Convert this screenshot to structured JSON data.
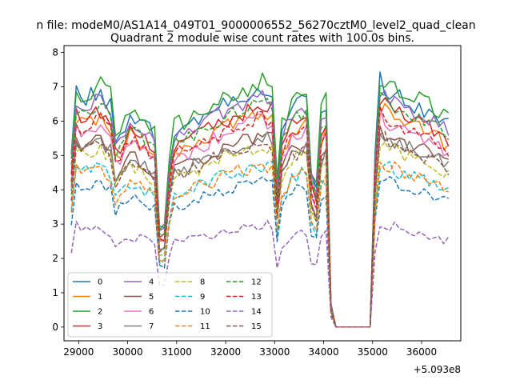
{
  "chart_data": {
    "type": "line",
    "suptitle": "n file: modeM0/AS1A14_049T01_9000006552_56270cztM0_level2_quad_clean",
    "title": "Quadrant 2 module wise count rates with 100.0s bins.",
    "xlabel": "",
    "ylabel": "",
    "x_offset_label": "+5.093e8",
    "xlim": [
      28700,
      36800
    ],
    "ylim": [
      -0.4,
      8.2
    ],
    "x_ticks": [
      29000,
      30000,
      31000,
      32000,
      33000,
      34000,
      35000,
      36000
    ],
    "x_tick_labels": [
      "29000",
      "30000",
      "31000",
      "32000",
      "33000",
      "34000",
      "35000",
      "36000"
    ],
    "y_ticks": [
      0,
      1,
      2,
      3,
      4,
      5,
      6,
      7,
      8
    ],
    "y_tick_labels": [
      "0",
      "1",
      "2",
      "3",
      "4",
      "5",
      "6",
      "7",
      "8"
    ],
    "x_start": 28850,
    "x_step": 100,
    "x_count": 78,
    "legend_location": "lower-left",
    "legend_columns": 4,
    "series": [
      {
        "name": "0",
        "color": "#1f77b4",
        "dash": "solid",
        "base": 6.8,
        "spread": 0.5
      },
      {
        "name": "1",
        "color": "#ff7f0e",
        "dash": "solid",
        "base": 6.1,
        "spread": 0.4
      },
      {
        "name": "2",
        "color": "#2ca02c",
        "dash": "solid",
        "base": 7.0,
        "spread": 0.5
      },
      {
        "name": "3",
        "color": "#d62728",
        "dash": "solid",
        "base": 6.3,
        "spread": 0.4
      },
      {
        "name": "4",
        "color": "#9467bd",
        "dash": "solid",
        "base": 6.6,
        "spread": 0.4
      },
      {
        "name": "5",
        "color": "#8c564b",
        "dash": "solid",
        "base": 5.5,
        "spread": 0.4
      },
      {
        "name": "6",
        "color": "#e377c2",
        "dash": "solid",
        "base": 5.9,
        "spread": 0.4
      },
      {
        "name": "7",
        "color": "#7f7f7f",
        "dash": "solid",
        "base": 5.4,
        "spread": 0.4
      },
      {
        "name": "8",
        "color": "#bcbd22",
        "dash": "dashed",
        "base": 5.2,
        "spread": 0.4
      },
      {
        "name": "9",
        "color": "#17becf",
        "dash": "dashed",
        "base": 4.6,
        "spread": 0.4
      },
      {
        "name": "10",
        "color": "#1f77b4",
        "dash": "dashed",
        "base": 4.2,
        "spread": 0.3
      },
      {
        "name": "11",
        "color": "#ff7f0e",
        "dash": "dashed",
        "base": 4.6,
        "spread": 0.4
      },
      {
        "name": "12",
        "color": "#2ca02c",
        "dash": "dashed",
        "base": 6.4,
        "spread": 0.4
      },
      {
        "name": "13",
        "color": "#d62728",
        "dash": "dashed",
        "base": 6.0,
        "spread": 0.4
      },
      {
        "name": "14",
        "color": "#9467bd",
        "dash": "dashed",
        "base": 2.9,
        "spread": 0.3
      },
      {
        "name": "15",
        "color": "#8c564b",
        "dash": "dashed",
        "base": 5.3,
        "spread": 0.4
      }
    ],
    "envelope": {
      "description": "shared relative count-rate profile for all modules (multiplier of each series base)",
      "knots_x": [
        28850,
        28950,
        29050,
        29450,
        29650,
        29750,
        29850,
        30050,
        30250,
        30450,
        30550,
        30650,
        30700,
        30800,
        30950,
        31250,
        31550,
        31850,
        32150,
        32450,
        32750,
        32950,
        33050,
        33150,
        33350,
        33550,
        33650,
        33750,
        33800,
        33850,
        33950,
        34050,
        34150,
        34250,
        34950,
        35050,
        35150,
        35350,
        35650,
        35950,
        36350,
        36550,
        36600
      ],
      "knots_f": [
        0.72,
        1.0,
        0.97,
        1.0,
        0.96,
        0.8,
        0.83,
        0.92,
        0.88,
        0.84,
        0.82,
        0.42,
        0.23,
        0.62,
        0.84,
        0.86,
        0.9,
        0.94,
        0.97,
        1.0,
        1.02,
        1.01,
        0.6,
        0.84,
        0.93,
        0.97,
        0.96,
        0.66,
        0.45,
        0.6,
        0.89,
        0.94,
        0.1,
        0.0,
        0.0,
        0.72,
        1.05,
        1.01,
        0.97,
        0.95,
        0.9,
        0.86,
        0.09
      ]
    }
  }
}
